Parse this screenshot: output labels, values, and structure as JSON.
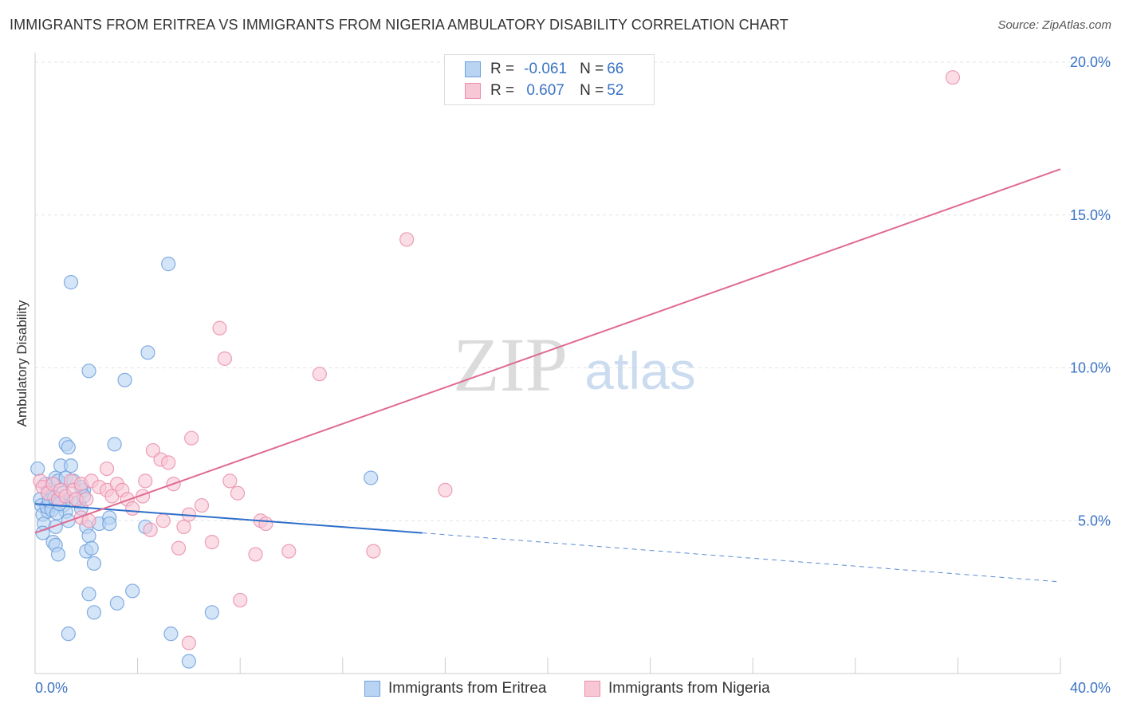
{
  "title": "IMMIGRANTS FROM ERITREA VS IMMIGRANTS FROM NIGERIA AMBULATORY DISABILITY CORRELATION CHART",
  "source": "Source: ZipAtlas.com",
  "watermark": {
    "zip": "ZIP",
    "atlas": "atlas"
  },
  "colors": {
    "blue": "#6fa0dd",
    "blue_fill": "#b9d3f3",
    "blue_line": "#2f6fc9",
    "pink": "#ea8eab",
    "pink_fill": "#f8c7d6",
    "pink_line": "#e06a92",
    "axis_text": "#3b73c4"
  },
  "legend": {
    "row1": {
      "r_label": "R =",
      "r_value": "-0.061",
      "n_label": "N =",
      "n_value": "66"
    },
    "row2": {
      "r_label": "R =",
      "r_value": "0.607",
      "n_label": "N =",
      "n_value": "52"
    }
  },
  "bottom_legend": {
    "eritrea": "Immigrants from Eritrea",
    "nigeria": "Immigrants from Nigeria"
  },
  "chart_data": {
    "type": "scatter",
    "title": "IMMIGRANTS FROM ERITREA VS IMMIGRANTS FROM NIGERIA AMBULATORY DISABILITY CORRELATION CHART",
    "xlabel": "",
    "ylabel": "Ambulatory Disability",
    "xlim": [
      0,
      40
    ],
    "ylim": [
      0,
      20
    ],
    "x_tick_labels": [
      "0.0%",
      "40.0%"
    ],
    "y_ticks": [
      5,
      10,
      15,
      20
    ],
    "y_tick_labels": [
      "5.0%",
      "10.0%",
      "15.0%",
      "20.0%"
    ],
    "grid": true,
    "series": [
      {
        "name": "Immigrants from Eritrea",
        "r": -0.061,
        "n": 66,
        "trend": {
          "x0": 0,
          "y0": 5.55,
          "x1": 15.1,
          "y1": 4.6,
          "dashed_to_x": 40,
          "dashed_to_y": 3.0
        },
        "points": [
          [
            0.1,
            6.7
          ],
          [
            0.2,
            5.7
          ],
          [
            0.25,
            5.5
          ],
          [
            0.3,
            5.2
          ],
          [
            0.35,
            4.9
          ],
          [
            0.3,
            4.6
          ],
          [
            0.5,
            5.3
          ],
          [
            0.6,
            5.6
          ],
          [
            0.7,
            5.8
          ],
          [
            0.6,
            6.0
          ],
          [
            0.8,
            6.4
          ],
          [
            0.9,
            6.3
          ],
          [
            1.0,
            5.7
          ],
          [
            1.1,
            5.5
          ],
          [
            0.8,
            4.8
          ],
          [
            0.7,
            4.3
          ],
          [
            0.8,
            4.2
          ],
          [
            0.9,
            3.9
          ],
          [
            1.0,
            6.8
          ],
          [
            1.2,
            6.4
          ],
          [
            1.1,
            5.9
          ],
          [
            1.2,
            5.3
          ],
          [
            1.3,
            5.0
          ],
          [
            1.2,
            7.5
          ],
          [
            1.3,
            7.4
          ],
          [
            1.4,
            6.8
          ],
          [
            1.5,
            6.3
          ],
          [
            1.6,
            5.7
          ],
          [
            1.7,
            5.6
          ],
          [
            1.8,
            5.4
          ],
          [
            1.9,
            6.0
          ],
          [
            1.8,
            6.1
          ],
          [
            1.9,
            5.8
          ],
          [
            2.0,
            4.8
          ],
          [
            2.1,
            4.5
          ],
          [
            2.0,
            4.0
          ],
          [
            2.2,
            4.1
          ],
          [
            2.3,
            3.6
          ],
          [
            1.4,
            12.8
          ],
          [
            2.1,
            9.9
          ],
          [
            3.1,
            7.5
          ],
          [
            3.5,
            9.6
          ],
          [
            2.5,
            4.9
          ],
          [
            2.9,
            5.1
          ],
          [
            2.9,
            4.9
          ],
          [
            4.4,
            10.5
          ],
          [
            5.2,
            13.4
          ],
          [
            4.3,
            4.8
          ],
          [
            2.1,
            2.6
          ],
          [
            2.3,
            2.0
          ],
          [
            3.2,
            2.3
          ],
          [
            3.8,
            2.7
          ],
          [
            1.3,
            1.3
          ],
          [
            5.3,
            1.3
          ],
          [
            6.9,
            2.0
          ],
          [
            6.0,
            0.4
          ],
          [
            13.1,
            6.4
          ],
          [
            0.4,
            6.2
          ],
          [
            0.5,
            5.9
          ],
          [
            0.6,
            5.5
          ],
          [
            0.45,
            5.45
          ],
          [
            0.55,
            5.65
          ],
          [
            0.65,
            5.35
          ],
          [
            0.75,
            5.75
          ],
          [
            0.85,
            5.25
          ],
          [
            0.95,
            5.55
          ]
        ]
      },
      {
        "name": "Immigrants from Nigeria",
        "r": 0.607,
        "n": 52,
        "trend": {
          "x0": 0,
          "y0": 4.6,
          "x1": 40,
          "y1": 16.5
        },
        "points": [
          [
            0.2,
            6.3
          ],
          [
            0.3,
            6.1
          ],
          [
            0.5,
            5.9
          ],
          [
            0.7,
            6.2
          ],
          [
            0.9,
            5.7
          ],
          [
            1.0,
            6.0
          ],
          [
            1.2,
            5.8
          ],
          [
            1.4,
            6.3
          ],
          [
            1.5,
            6.0
          ],
          [
            1.6,
            5.7
          ],
          [
            1.8,
            6.2
          ],
          [
            2.0,
            5.7
          ],
          [
            1.8,
            5.1
          ],
          [
            2.1,
            5.0
          ],
          [
            2.2,
            6.3
          ],
          [
            2.5,
            6.1
          ],
          [
            2.8,
            6.0
          ],
          [
            2.8,
            6.7
          ],
          [
            3.0,
            5.8
          ],
          [
            3.2,
            6.2
          ],
          [
            3.4,
            6.0
          ],
          [
            3.6,
            5.7
          ],
          [
            3.8,
            5.4
          ],
          [
            4.2,
            5.8
          ],
          [
            4.3,
            6.3
          ],
          [
            4.5,
            4.7
          ],
          [
            4.6,
            7.3
          ],
          [
            4.9,
            7.0
          ],
          [
            5.0,
            5.0
          ],
          [
            5.2,
            6.9
          ],
          [
            5.4,
            6.2
          ],
          [
            5.6,
            4.1
          ],
          [
            5.8,
            4.8
          ],
          [
            6.0,
            5.2
          ],
          [
            6.1,
            7.7
          ],
          [
            6.5,
            5.5
          ],
          [
            6.9,
            4.3
          ],
          [
            7.2,
            11.3
          ],
          [
            7.4,
            10.3
          ],
          [
            7.6,
            6.3
          ],
          [
            7.9,
            5.9
          ],
          [
            8.0,
            2.4
          ],
          [
            8.6,
            3.9
          ],
          [
            8.8,
            5.0
          ],
          [
            9.0,
            4.9
          ],
          [
            9.9,
            4.0
          ],
          [
            11.1,
            9.8
          ],
          [
            13.2,
            4.0
          ],
          [
            14.5,
            14.2
          ],
          [
            16.0,
            6.0
          ],
          [
            35.8,
            19.5
          ],
          [
            6.0,
            1.0
          ]
        ]
      }
    ]
  }
}
